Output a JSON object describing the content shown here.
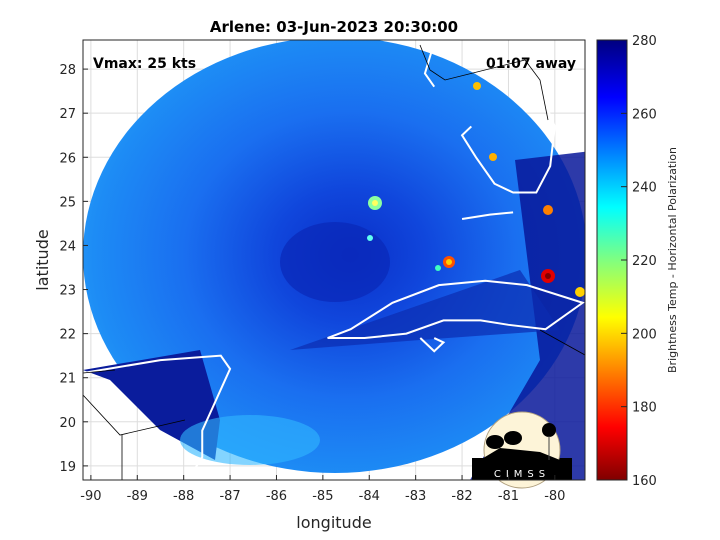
{
  "chart_data": {
    "type": "heatmap",
    "title": "Arlene: 03-Jun-2023 20:30:00",
    "xlabel": "longitude",
    "ylabel": "latitude",
    "xlim": [
      -90.17,
      -79.35
    ],
    "ylim": [
      18.68,
      28.66
    ],
    "xticks": [
      "-90",
      "-89",
      "-88",
      "-87",
      "-86",
      "-85",
      "-84",
      "-83",
      "-82",
      "-81",
      "-80"
    ],
    "yticks": [
      "19",
      "20",
      "21",
      "22",
      "23",
      "24",
      "25",
      "26",
      "27",
      "28"
    ],
    "grid": true,
    "annotations": {
      "left": "Vmax: 25 kts",
      "right": "01:07 away"
    },
    "storm_center": {
      "lon": -84.7,
      "lat": 23.6
    },
    "colorbar": {
      "label": "Brightness Temp - Horizontal Polarization",
      "range": [
        160,
        280
      ],
      "ticks": [
        "280",
        "260",
        "240",
        "220",
        "200",
        "180",
        "160"
      ],
      "colormap": "jet"
    },
    "logo": "CIMSS"
  }
}
